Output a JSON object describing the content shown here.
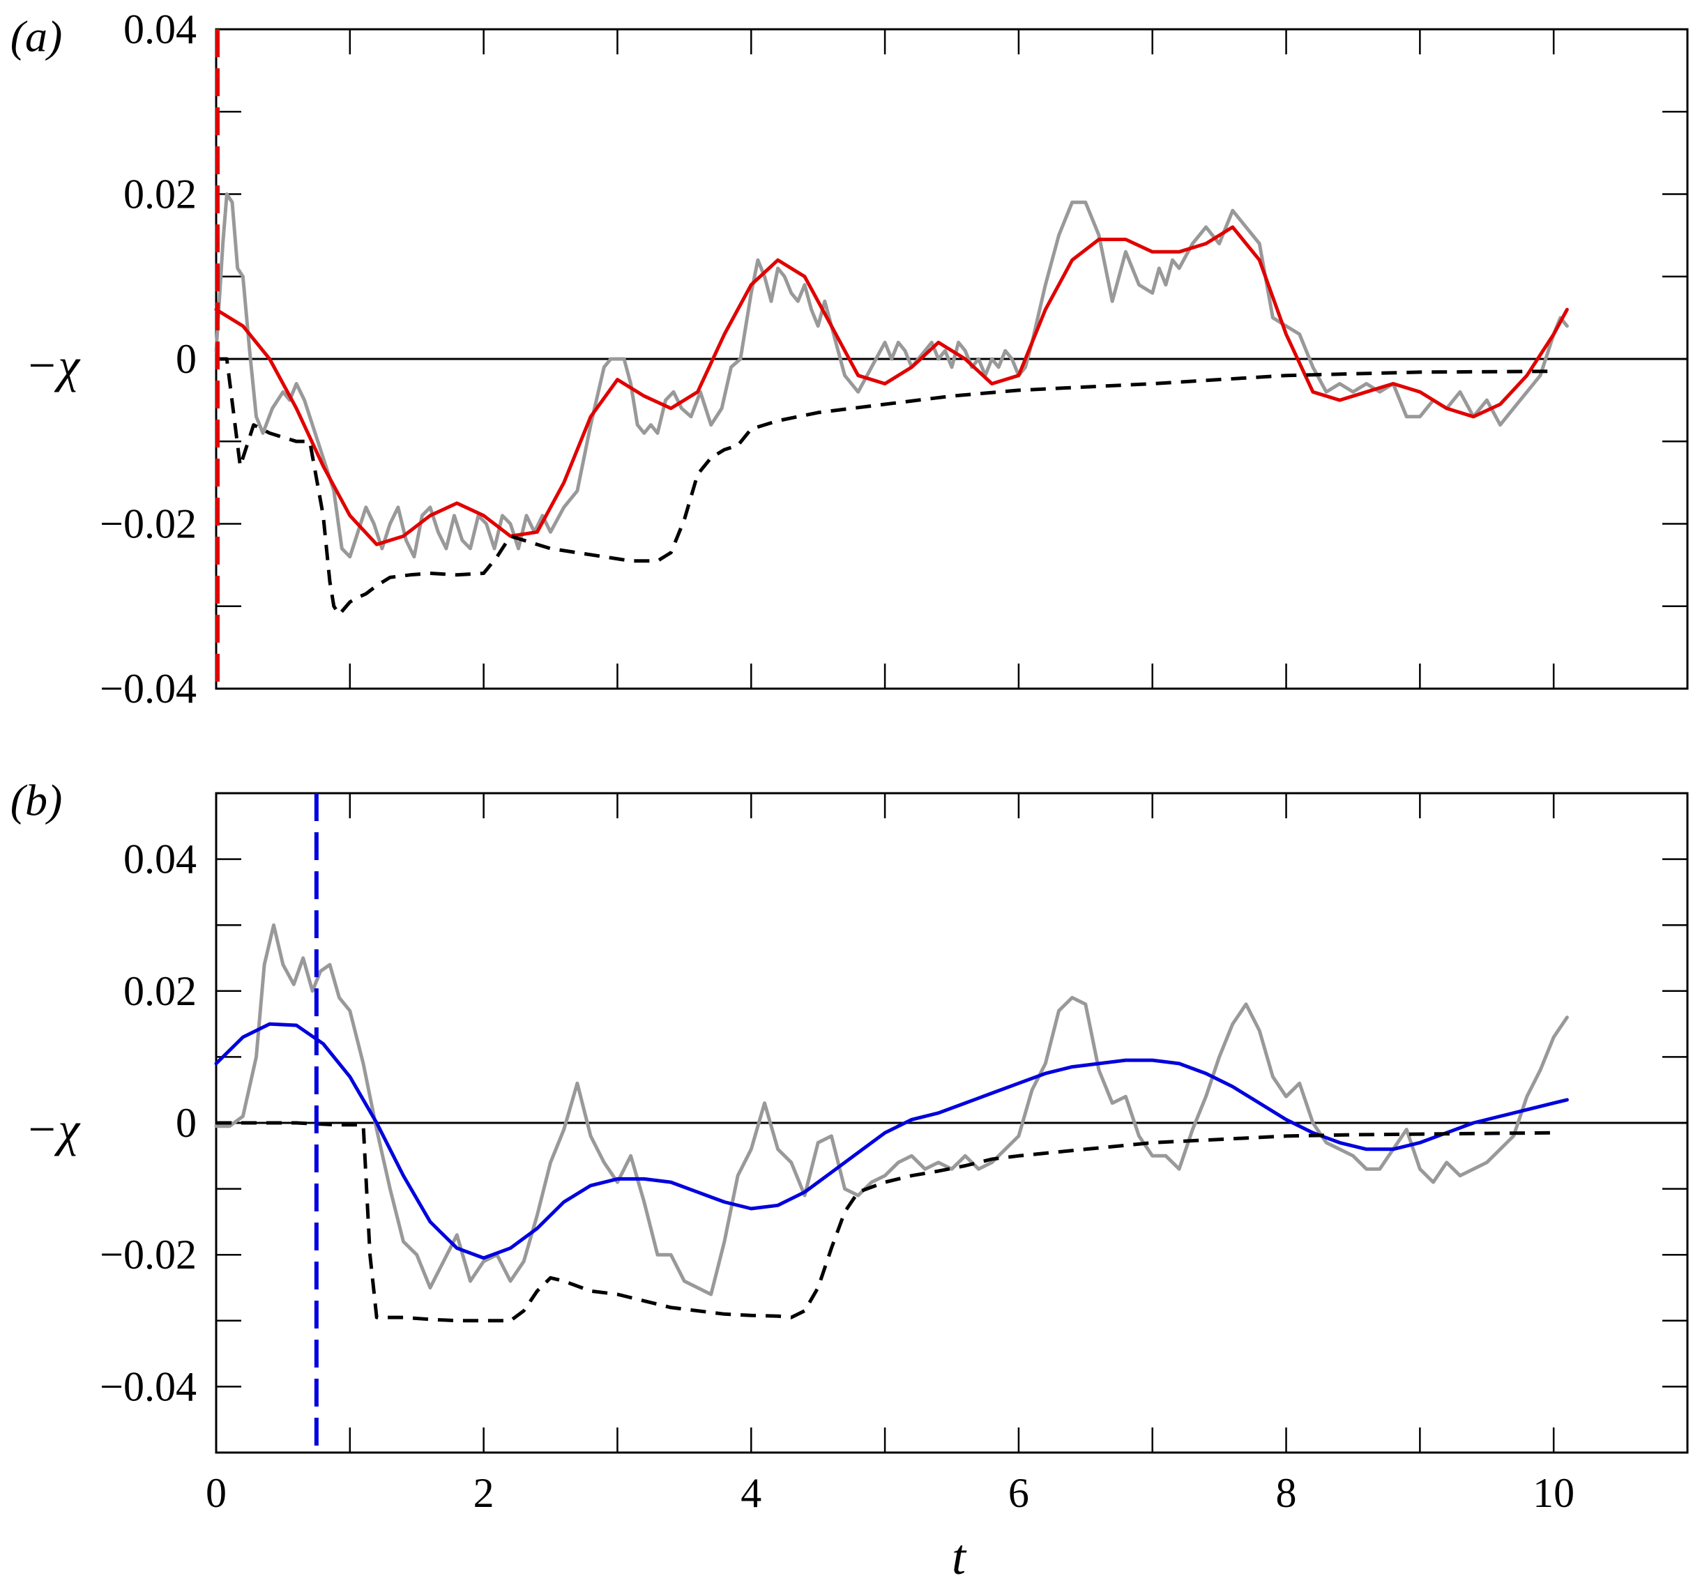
{
  "chart_data": [
    {
      "panel": "(a)",
      "type": "line",
      "ylabel": "−χ",
      "xlabel": "",
      "xlim": [
        0,
        11
      ],
      "ylim": [
        -0.04,
        0.04
      ],
      "xticks": [
        0,
        2,
        4,
        6,
        8,
        10
      ],
      "xtick_labels": [
        "0",
        "2",
        "4",
        "6",
        "8",
        "10"
      ],
      "yticks": [
        -0.04,
        -0.02,
        0,
        0.02,
        0.04
      ],
      "ytick_labels": [
        "−0.04",
        "−0.02",
        "0",
        "0.02",
        "0.04"
      ],
      "grid": false,
      "zero_line": true,
      "vline": {
        "x": 0.0,
        "color": "#e00000",
        "style": "dashed"
      },
      "series": [
        {
          "color": "#999999",
          "style": "solid",
          "width": 5,
          "x": [
            0.0,
            0.05,
            0.08,
            0.12,
            0.16,
            0.2,
            0.25,
            0.3,
            0.35,
            0.42,
            0.5,
            0.55,
            0.6,
            0.66,
            0.72,
            0.8,
            0.88,
            0.94,
            1.0,
            1.06,
            1.12,
            1.18,
            1.24,
            1.3,
            1.36,
            1.42,
            1.48,
            1.54,
            1.6,
            1.66,
            1.72,
            1.78,
            1.84,
            1.9,
            1.96,
            2.02,
            2.08,
            2.14,
            2.2,
            2.26,
            2.32,
            2.38,
            2.44,
            2.5,
            2.6,
            2.7,
            2.8,
            2.9,
            2.95,
            3.0,
            3.05,
            3.1,
            3.15,
            3.2,
            3.25,
            3.3,
            3.36,
            3.42,
            3.48,
            3.55,
            3.62,
            3.7,
            3.78,
            3.85,
            3.92,
            4.0,
            4.05,
            4.1,
            4.15,
            4.2,
            4.25,
            4.3,
            4.35,
            4.4,
            4.45,
            4.5,
            4.55,
            4.6,
            4.7,
            4.8,
            4.9,
            5.0,
            5.05,
            5.1,
            5.15,
            5.2,
            5.25,
            5.3,
            5.35,
            5.4,
            5.45,
            5.5,
            5.55,
            5.6,
            5.65,
            5.7,
            5.75,
            5.8,
            5.85,
            5.9,
            5.95,
            6.0,
            6.05,
            6.1,
            6.2,
            6.3,
            6.4,
            6.5,
            6.6,
            6.7,
            6.8,
            6.9,
            7.0,
            7.05,
            7.1,
            7.15,
            7.2,
            7.3,
            7.4,
            7.5,
            7.6,
            7.7,
            7.8,
            7.9,
            8.0,
            8.1,
            8.2,
            8.3,
            8.4,
            8.5,
            8.6,
            8.7,
            8.8,
            8.9,
            9.0,
            9.1,
            9.2,
            9.3,
            9.4,
            9.5,
            9.6,
            9.7,
            9.8,
            9.9,
            10.0,
            10.05,
            10.1
          ],
          "y": [
            0.001,
            0.014,
            0.02,
            0.019,
            0.011,
            0.01,
            0.001,
            -0.007,
            -0.009,
            -0.006,
            -0.004,
            -0.005,
            -0.003,
            -0.005,
            -0.008,
            -0.012,
            -0.016,
            -0.023,
            -0.024,
            -0.021,
            -0.018,
            -0.02,
            -0.023,
            -0.02,
            -0.018,
            -0.022,
            -0.024,
            -0.019,
            -0.018,
            -0.021,
            -0.023,
            -0.019,
            -0.022,
            -0.023,
            -0.019,
            -0.02,
            -0.023,
            -0.019,
            -0.02,
            -0.023,
            -0.019,
            -0.021,
            -0.019,
            -0.021,
            -0.018,
            -0.016,
            -0.008,
            -0.001,
            0.0,
            -0.0,
            0.0,
            -0.003,
            -0.008,
            -0.009,
            -0.008,
            -0.009,
            -0.005,
            -0.004,
            -0.006,
            -0.007,
            -0.004,
            -0.008,
            -0.006,
            -0.001,
            0.0,
            0.008,
            0.012,
            0.01,
            0.007,
            0.011,
            0.01,
            0.008,
            0.007,
            0.009,
            0.006,
            0.004,
            0.007,
            0.004,
            -0.002,
            -0.004,
            -0.001,
            0.002,
            0.0,
            0.002,
            0.001,
            -0.001,
            0.0,
            0.001,
            0.002,
            0.0,
            0.001,
            -0.001,
            0.002,
            0.001,
            -0.001,
            0.0,
            -0.002,
            0.0,
            -0.001,
            0.001,
            0.0,
            -0.002,
            -0.001,
            0.002,
            0.009,
            0.015,
            0.019,
            0.019,
            0.015,
            0.007,
            0.013,
            0.009,
            0.008,
            0.011,
            0.009,
            0.012,
            0.011,
            0.014,
            0.016,
            0.014,
            0.018,
            0.016,
            0.014,
            0.005,
            0.004,
            0.003,
            -0.001,
            -0.004,
            -0.003,
            -0.004,
            -0.003,
            -0.004,
            -0.003,
            -0.007,
            -0.007,
            -0.005,
            -0.006,
            -0.004,
            -0.007,
            -0.005,
            -0.008,
            -0.006,
            -0.004,
            -0.002,
            0.003,
            0.005,
            0.004
          ]
        },
        {
          "color": "#e00000",
          "style": "solid",
          "width": 5,
          "x": [
            0.0,
            0.2,
            0.4,
            0.6,
            0.8,
            1.0,
            1.2,
            1.4,
            1.6,
            1.8,
            2.0,
            2.2,
            2.4,
            2.6,
            2.8,
            3.0,
            3.2,
            3.4,
            3.6,
            3.8,
            4.0,
            4.2,
            4.4,
            4.6,
            4.8,
            5.0,
            5.2,
            5.4,
            5.6,
            5.8,
            6.0,
            6.2,
            6.4,
            6.6,
            6.8,
            7.0,
            7.2,
            7.4,
            7.6,
            7.8,
            8.0,
            8.2,
            8.4,
            8.6,
            8.8,
            9.0,
            9.2,
            9.4,
            9.6,
            9.8,
            10.0,
            10.1
          ],
          "y": [
            0.006,
            0.004,
            0.0,
            -0.006,
            -0.013,
            -0.019,
            -0.0225,
            -0.0215,
            -0.019,
            -0.0175,
            -0.019,
            -0.0215,
            -0.021,
            -0.015,
            -0.007,
            -0.0025,
            -0.0045,
            -0.006,
            -0.004,
            0.003,
            0.009,
            0.012,
            0.01,
            0.004,
            -0.002,
            -0.003,
            -0.001,
            0.002,
            0.0,
            -0.003,
            -0.002,
            0.006,
            0.012,
            0.0145,
            0.0145,
            0.013,
            0.013,
            0.014,
            0.016,
            0.012,
            0.003,
            -0.004,
            -0.005,
            -0.004,
            -0.003,
            -0.004,
            -0.006,
            -0.007,
            -0.0055,
            -0.002,
            0.003,
            0.006
          ]
        },
        {
          "color": "#000000",
          "style": "dashed",
          "width": 5,
          "x": [
            0.0,
            0.08,
            0.18,
            0.22,
            0.28,
            0.4,
            0.6,
            0.7,
            0.8,
            0.85,
            0.88,
            0.92,
            1.0,
            1.05,
            1.12,
            1.2,
            1.3,
            1.45,
            1.6,
            1.8,
            2.0,
            2.1,
            2.2,
            2.3,
            2.4,
            2.5,
            2.7,
            2.9,
            3.1,
            3.3,
            3.4,
            3.5,
            3.6,
            3.7,
            3.8,
            3.9,
            4.0,
            4.2,
            4.5,
            5.0,
            5.5,
            6.0,
            7.0,
            8.0,
            9.0,
            10.0
          ],
          "y": [
            0.0,
            0.0,
            -0.013,
            -0.011,
            -0.008,
            -0.009,
            -0.01,
            -0.01,
            -0.019,
            -0.027,
            -0.03,
            -0.031,
            -0.0295,
            -0.029,
            -0.0285,
            -0.0275,
            -0.0265,
            -0.0262,
            -0.026,
            -0.0262,
            -0.026,
            -0.024,
            -0.0215,
            -0.022,
            -0.0225,
            -0.023,
            -0.0235,
            -0.024,
            -0.0245,
            -0.0245,
            -0.0235,
            -0.0195,
            -0.014,
            -0.012,
            -0.011,
            -0.0105,
            -0.0085,
            -0.0075,
            -0.0065,
            -0.0055,
            -0.0045,
            -0.0038,
            -0.003,
            -0.002,
            -0.0016,
            -0.0015
          ]
        }
      ]
    },
    {
      "panel": "(b)",
      "type": "line",
      "ylabel": "−χ",
      "xlabel": "t",
      "xlim": [
        0,
        11
      ],
      "ylim": [
        -0.05,
        0.05
      ],
      "xticks": [
        0,
        2,
        4,
        6,
        8,
        10
      ],
      "xtick_labels": [
        "0",
        "2",
        "4",
        "6",
        "8",
        "10"
      ],
      "yticks": [
        -0.04,
        -0.02,
        0,
        0.02,
        0.04
      ],
      "ytick_labels": [
        "−0.04",
        "−0.02",
        "0",
        "0.02",
        "0.04"
      ],
      "grid": false,
      "zero_line": true,
      "vline": {
        "x": 0.75,
        "color": "#0000e0",
        "style": "dashed"
      },
      "series": [
        {
          "color": "#999999",
          "style": "solid",
          "width": 5,
          "x": [
            0.0,
            0.1,
            0.2,
            0.3,
            0.36,
            0.43,
            0.5,
            0.58,
            0.65,
            0.72,
            0.78,
            0.85,
            0.92,
            1.0,
            1.1,
            1.2,
            1.3,
            1.4,
            1.5,
            1.6,
            1.7,
            1.8,
            1.9,
            2.0,
            2.1,
            2.2,
            2.3,
            2.4,
            2.5,
            2.6,
            2.7,
            2.8,
            2.9,
            3.0,
            3.1,
            3.2,
            3.3,
            3.4,
            3.5,
            3.6,
            3.7,
            3.8,
            3.9,
            4.0,
            4.1,
            4.2,
            4.3,
            4.4,
            4.5,
            4.6,
            4.7,
            4.8,
            4.9,
            5.0,
            5.1,
            5.2,
            5.3,
            5.4,
            5.5,
            5.6,
            5.7,
            5.8,
            5.9,
            6.0,
            6.1,
            6.2,
            6.3,
            6.4,
            6.5,
            6.6,
            6.7,
            6.8,
            6.9,
            7.0,
            7.1,
            7.2,
            7.3,
            7.4,
            7.5,
            7.6,
            7.7,
            7.8,
            7.9,
            8.0,
            8.1,
            8.2,
            8.3,
            8.4,
            8.5,
            8.6,
            8.7,
            8.8,
            8.9,
            9.0,
            9.1,
            9.2,
            9.3,
            9.4,
            9.5,
            9.6,
            9.7,
            9.8,
            9.9,
            10.0,
            10.1
          ],
          "y": [
            -0.0005,
            -0.0005,
            0.001,
            0.01,
            0.024,
            0.03,
            0.024,
            0.021,
            0.025,
            0.02,
            0.023,
            0.024,
            0.019,
            0.017,
            0.009,
            -0.001,
            -0.01,
            -0.018,
            -0.02,
            -0.025,
            -0.021,
            -0.017,
            -0.024,
            -0.021,
            -0.02,
            -0.024,
            -0.021,
            -0.014,
            -0.006,
            -0.001,
            0.006,
            -0.002,
            -0.006,
            -0.009,
            -0.005,
            -0.012,
            -0.02,
            -0.02,
            -0.024,
            -0.025,
            -0.026,
            -0.018,
            -0.008,
            -0.004,
            0.003,
            -0.004,
            -0.006,
            -0.011,
            -0.003,
            -0.002,
            -0.01,
            -0.011,
            -0.009,
            -0.008,
            -0.006,
            -0.005,
            -0.007,
            -0.006,
            -0.007,
            -0.005,
            -0.007,
            -0.006,
            -0.004,
            -0.002,
            0.005,
            0.009,
            0.017,
            0.019,
            0.018,
            0.008,
            0.003,
            0.004,
            -0.002,
            -0.005,
            -0.005,
            -0.007,
            -0.001,
            0.004,
            0.01,
            0.015,
            0.018,
            0.014,
            0.007,
            0.004,
            0.006,
            0.0,
            -0.003,
            -0.004,
            -0.005,
            -0.007,
            -0.007,
            -0.004,
            -0.001,
            -0.007,
            -0.009,
            -0.006,
            -0.008,
            -0.007,
            -0.006,
            -0.004,
            -0.002,
            0.004,
            0.008,
            0.013,
            0.016
          ]
        },
        {
          "color": "#0000dd",
          "style": "solid",
          "width": 5,
          "x": [
            0.0,
            0.2,
            0.4,
            0.6,
            0.8,
            1.0,
            1.2,
            1.4,
            1.6,
            1.8,
            2.0,
            2.2,
            2.4,
            2.6,
            2.8,
            3.0,
            3.2,
            3.4,
            3.6,
            3.8,
            4.0,
            4.2,
            4.4,
            4.6,
            4.8,
            5.0,
            5.2,
            5.4,
            5.6,
            5.8,
            6.0,
            6.2,
            6.4,
            6.6,
            6.8,
            7.0,
            7.2,
            7.4,
            7.6,
            7.8,
            8.0,
            8.2,
            8.4,
            8.6,
            8.8,
            9.0,
            9.2,
            9.4,
            9.6,
            9.8,
            10.0,
            10.1
          ],
          "y": [
            0.009,
            0.013,
            0.015,
            0.0148,
            0.012,
            0.007,
            0.0,
            -0.008,
            -0.015,
            -0.019,
            -0.0205,
            -0.019,
            -0.016,
            -0.012,
            -0.0095,
            -0.0085,
            -0.0085,
            -0.009,
            -0.0105,
            -0.012,
            -0.013,
            -0.0125,
            -0.0105,
            -0.0075,
            -0.0045,
            -0.0015,
            0.0005,
            0.0015,
            0.003,
            0.0045,
            0.006,
            0.0075,
            0.0085,
            0.009,
            0.0095,
            0.0095,
            0.009,
            0.0075,
            0.0055,
            0.003,
            0.0005,
            -0.0015,
            -0.003,
            -0.004,
            -0.004,
            -0.003,
            -0.0015,
            0.0,
            0.001,
            0.002,
            0.003,
            0.0035
          ]
        },
        {
          "color": "#000000",
          "style": "dashed",
          "width": 5,
          "x": [
            0.0,
            0.3,
            0.6,
            0.9,
            1.1,
            1.15,
            1.2,
            1.4,
            1.6,
            1.8,
            2.0,
            2.2,
            2.3,
            2.4,
            2.5,
            2.6,
            2.8,
            3.0,
            3.2,
            3.4,
            3.6,
            3.8,
            4.0,
            4.2,
            4.3,
            4.4,
            4.5,
            4.6,
            4.7,
            4.8,
            5.0,
            5.2,
            5.4,
            5.6,
            5.8,
            6.0,
            6.5,
            7.0,
            7.5,
            8.0,
            8.5,
            9.0,
            9.5,
            10.0
          ],
          "y": [
            0.0,
            0.0,
            0.0,
            -0.0003,
            -0.0003,
            -0.02,
            -0.0295,
            -0.0295,
            -0.0298,
            -0.03,
            -0.03,
            -0.03,
            -0.0285,
            -0.0255,
            -0.0235,
            -0.024,
            -0.0255,
            -0.026,
            -0.027,
            -0.028,
            -0.0285,
            -0.029,
            -0.0292,
            -0.0293,
            -0.0295,
            -0.0285,
            -0.025,
            -0.019,
            -0.0135,
            -0.0105,
            -0.009,
            -0.008,
            -0.0073,
            -0.0065,
            -0.0055,
            -0.005,
            -0.004,
            -0.003,
            -0.0025,
            -0.002,
            -0.0018,
            -0.0017,
            -0.0016,
            -0.0015
          ]
        }
      ]
    }
  ]
}
